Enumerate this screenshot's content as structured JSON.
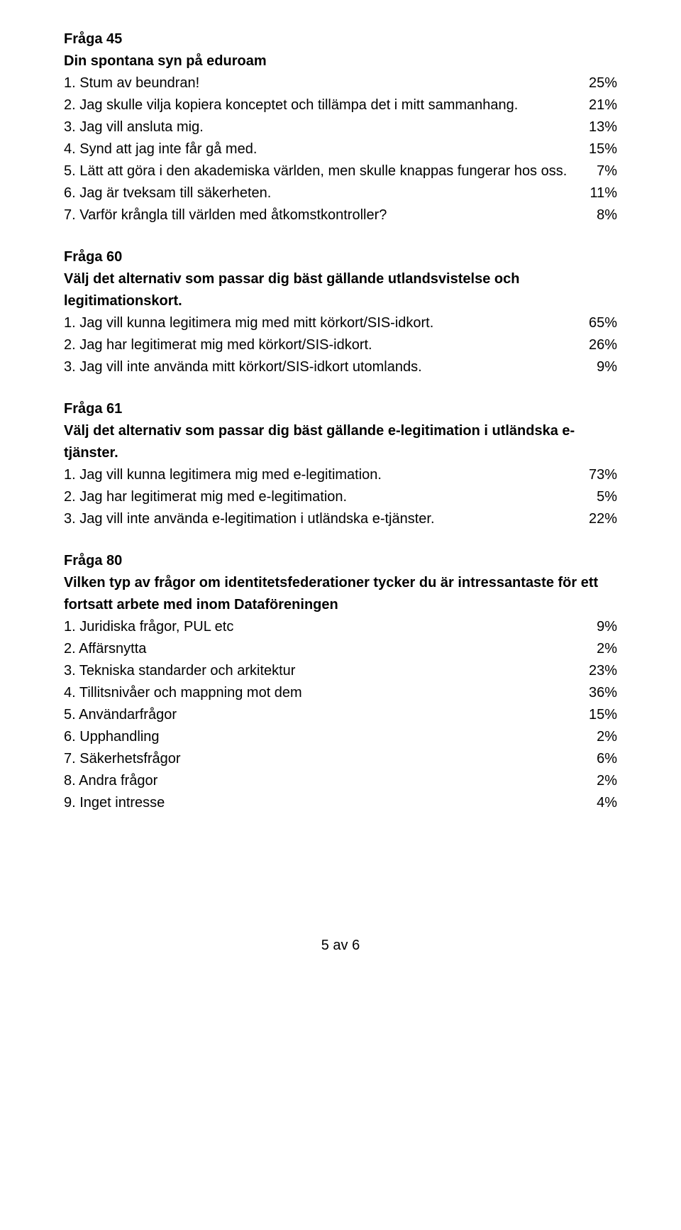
{
  "text_color": "#000000",
  "background_color": "#ffffff",
  "font_family": "Trebuchet MS",
  "base_font_size_pt": 15,
  "q45": {
    "number": "Fråga 45",
    "title": "Din spontana syn på eduroam",
    "rows": [
      {
        "label": "1. Stum av beundran!",
        "value": "25%"
      },
      {
        "label": "2. Jag skulle vilja kopiera konceptet och tillämpa det i mitt sammanhang.",
        "value": "21%"
      },
      {
        "label": "3. Jag vill ansluta mig.",
        "value": "13%"
      },
      {
        "label": "4. Synd att jag inte får gå med.",
        "value": "15%"
      },
      {
        "label": "5. Lätt att göra i den akademiska världen, men skulle knappas fungerar hos oss.",
        "value": "7%"
      },
      {
        "label": "6. Jag är tveksam till säkerheten.",
        "value": "11%"
      },
      {
        "label": "7. Varför krångla till världen med åtkomstkontroller?",
        "value": "8%"
      }
    ]
  },
  "q60": {
    "number": "Fråga 60",
    "title": "Välj det alternativ som passar dig bäst gällande utlandsvistelse och legitimationskort.",
    "rows": [
      {
        "label": "1. Jag vill kunna legitimera mig med mitt körkort/SIS-idkort.",
        "value": "65%"
      },
      {
        "label": "2. Jag har legitimerat mig med körkort/SIS-idkort.",
        "value": "26%"
      },
      {
        "label": "3. Jag vill inte använda mitt körkort/SIS-idkort utomlands.",
        "value": "9%"
      }
    ]
  },
  "q61": {
    "number": "Fråga 61",
    "title": "Välj det alternativ som passar dig bäst gällande e-legitimation i utländska e-tjänster.",
    "rows": [
      {
        "label": "1.  Jag vill kunna legitimera mig med e-legitimation.",
        "value": "73%"
      },
      {
        "label": "2. Jag har legitimerat mig med e-legitimation.",
        "value": "5%"
      },
      {
        "label": "3. Jag vill inte  använda e-legitimation i utländska e-tjänster.",
        "value": "22%"
      }
    ]
  },
  "q80": {
    "number": "Fråga 80",
    "title": "Vilken typ av frågor om identitetsfederationer tycker du är intressantaste för ett fortsatt arbete med inom Dataföreningen",
    "rows": [
      {
        "label": "1. Juridiska frågor, PUL etc",
        "value": "9%"
      },
      {
        "label": "2. Affärsnytta",
        "value": "2%"
      },
      {
        "label": "3. Tekniska standarder och arkitektur",
        "value": "23%"
      },
      {
        "label": "4. Tillitsnivåer och mappning mot dem",
        "value": "36%"
      },
      {
        "label": "5. Användarfrågor",
        "value": "15%"
      },
      {
        "label": "6. Upphandling",
        "value": "2%"
      },
      {
        "label": "7. Säkerhetsfrågor",
        "value": "6%"
      },
      {
        "label": "8. Andra frågor",
        "value": "2%"
      },
      {
        "label": "9. Inget intresse",
        "value": "4%"
      }
    ]
  },
  "footer": "5 av 6"
}
